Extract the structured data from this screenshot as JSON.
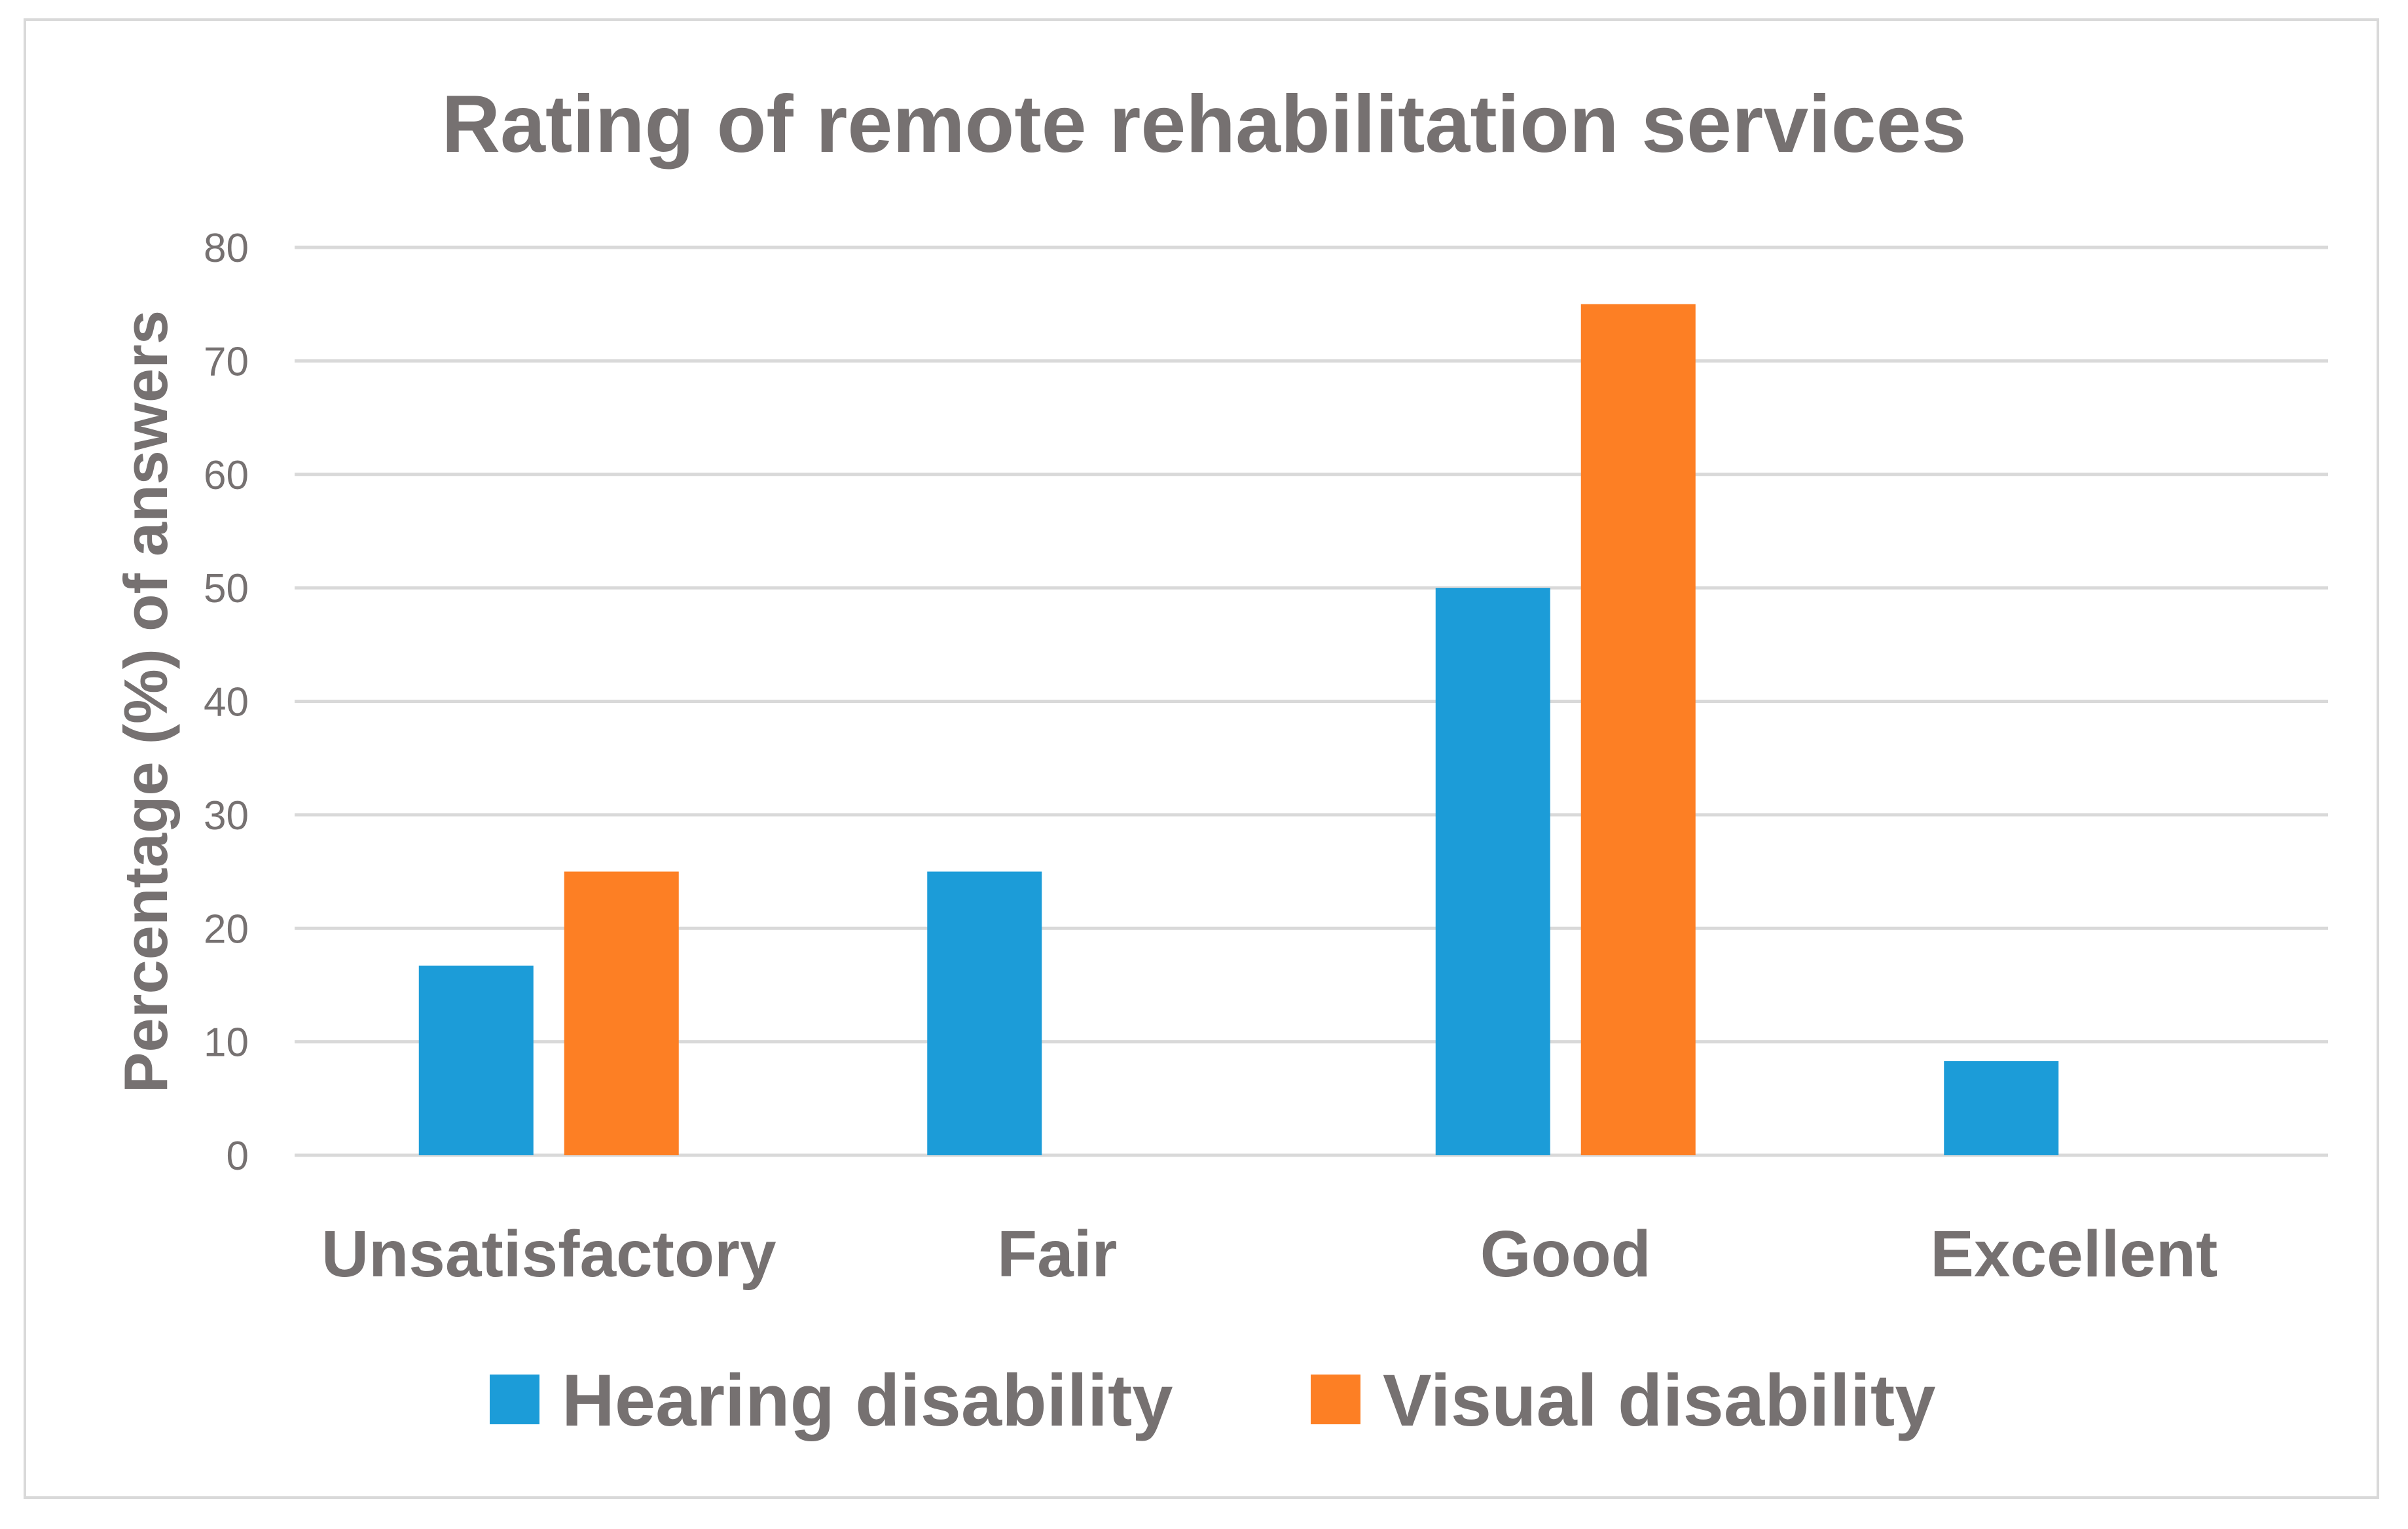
{
  "chart_data": {
    "type": "bar",
    "title": "Rating of remote rehabilitation services",
    "xlabel": "",
    "ylabel": "Percentage (%) of answers",
    "categories": [
      "Unsatisfactory",
      "Fair",
      "Good",
      "Excellent"
    ],
    "series": [
      {
        "name": "Hearing disability",
        "color": "#1c9cd8",
        "values": [
          16.7,
          25,
          50,
          8.3
        ]
      },
      {
        "name": "Visual disability",
        "color": "#fd7f24",
        "values": [
          25,
          0,
          75,
          0
        ]
      }
    ],
    "ylim": [
      0,
      80
    ],
    "yticks": [
      0,
      10,
      20,
      30,
      40,
      50,
      60,
      70,
      80
    ],
    "grid": true,
    "legend_position": "bottom"
  }
}
